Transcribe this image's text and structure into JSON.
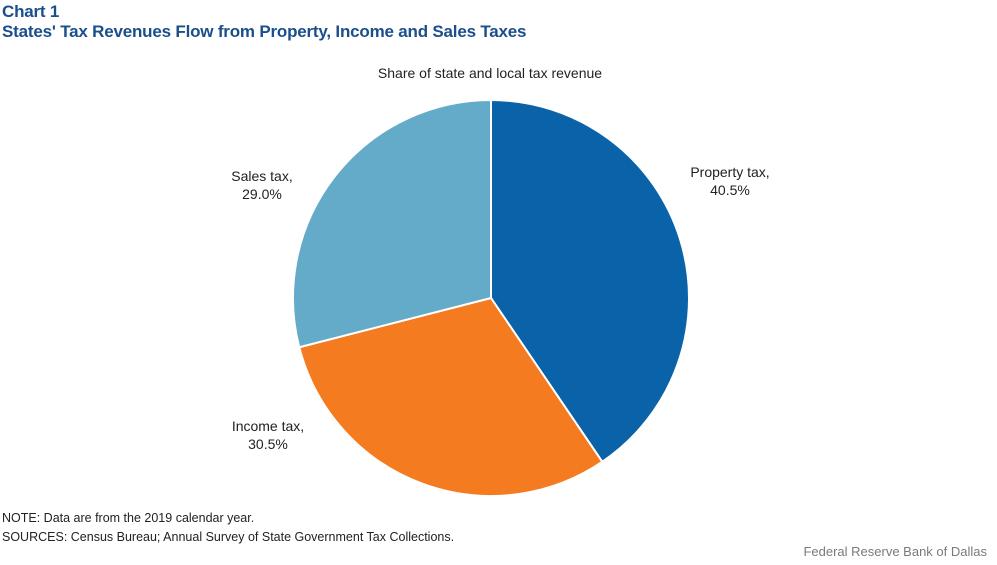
{
  "header": {
    "chart_number": "Chart 1",
    "title": "States' Tax Revenues Flow from Property, Income and Sales Taxes"
  },
  "chart_data": {
    "type": "pie",
    "subtitle": "Share of state and local tax revenue",
    "slices": [
      {
        "name": "Property tax",
        "value": 40.5,
        "label_text": "40.5%",
        "name_text": "Property tax,",
        "color": "#0a62a8"
      },
      {
        "name": "Income tax",
        "value": 30.5,
        "label_text": "30.5%",
        "name_text": "Income tax,",
        "color": "#f47b20"
      },
      {
        "name": "Sales tax",
        "value": 29.0,
        "label_text": "29.0%",
        "name_text": "Sales tax,",
        "color": "#64abc9"
      }
    ],
    "start_angle_deg": 0,
    "direction": "clockwise"
  },
  "footer": {
    "note": "NOTE: Data are from the 2019 calendar year.",
    "sources": "SOURCES: Census Bureau; Annual Survey of State Government Tax Collections.",
    "credit": "Federal Reserve Bank of Dallas"
  }
}
